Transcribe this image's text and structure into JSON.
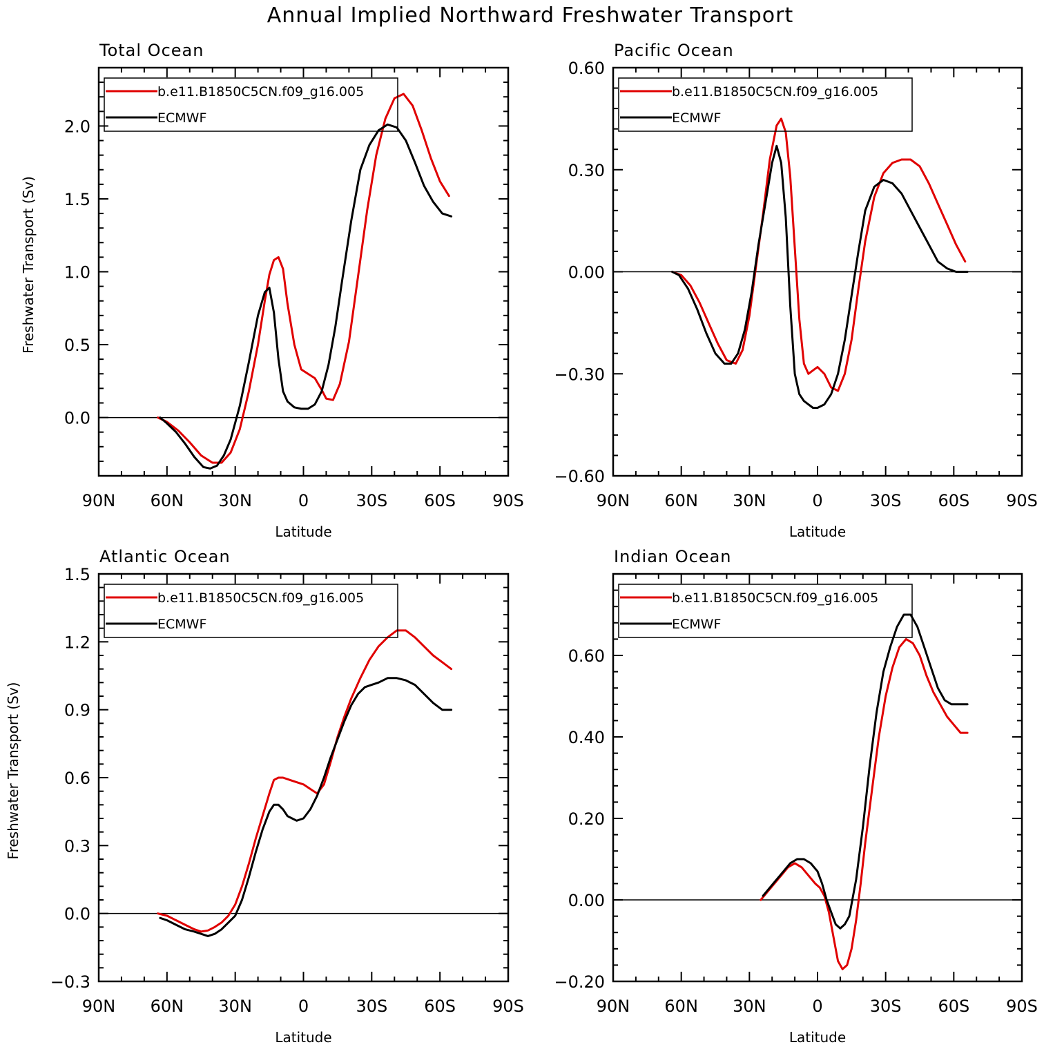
{
  "figure_title": "Annual Implied Northward Freshwater Transport",
  "legend_labels": [
    "b.e11.B1850C5CN.f09_g16.005",
    "ECMWF"
  ],
  "colors": {
    "model": "#e00000",
    "ecmwf": "#000000",
    "axis": "#000000"
  },
  "chart_data": [
    {
      "type": "line",
      "title": "Total Ocean",
      "xlabel": "Latitude",
      "ylabel": "Freshwater Transport (Sv)",
      "xlim": [
        90,
        -90
      ],
      "ylim": [
        -0.4,
        2.4
      ],
      "xticks": [
        90,
        60,
        30,
        0,
        -30,
        -60,
        -90
      ],
      "xtick_labels": [
        "90N",
        "60N",
        "30N",
        "0",
        "30S",
        "60S",
        "90S"
      ],
      "yticks": [
        0.0,
        0.5,
        1.0,
        1.5,
        2.0
      ],
      "ytick_labels": [
        "0.0",
        "0.5",
        "1.0",
        "1.5",
        "2.0"
      ],
      "right_axis_labels": false,
      "legend": "top-left",
      "series": [
        {
          "name": "b.e11.B1850C5CN.f09_g16.005",
          "color": "#e00000",
          "x": [
            64,
            60,
            55,
            50,
            45,
            40,
            36,
            32,
            28,
            24,
            20,
            17,
            15,
            13,
            11,
            9,
            7,
            4,
            1,
            -2,
            -5,
            -8,
            -10,
            -13,
            -16,
            -20,
            -24,
            -28,
            -32,
            -36,
            -40,
            -44,
            -48,
            -52,
            -56,
            -60,
            -64
          ],
          "y": [
            0.0,
            -0.03,
            -0.09,
            -0.17,
            -0.26,
            -0.31,
            -0.31,
            -0.24,
            -0.08,
            0.18,
            0.5,
            0.8,
            0.98,
            1.08,
            1.1,
            1.02,
            0.78,
            0.5,
            0.33,
            0.3,
            0.27,
            0.19,
            0.13,
            0.12,
            0.23,
            0.52,
            0.97,
            1.42,
            1.8,
            2.05,
            2.19,
            2.22,
            2.14,
            1.97,
            1.78,
            1.62,
            1.52
          ]
        },
        {
          "name": "ECMWF",
          "color": "#000000",
          "x": [
            63,
            60,
            56,
            52,
            48,
            44,
            41,
            38,
            35,
            32,
            28,
            24,
            20,
            17,
            15,
            13,
            11,
            9,
            7,
            4,
            1,
            -2,
            -5,
            -8,
            -11,
            -14,
            -17,
            -21,
            -25,
            -29,
            -33,
            -37,
            -41,
            -45,
            -49,
            -53,
            -57,
            -61,
            -65
          ],
          "y": [
            0.0,
            -0.04,
            -0.1,
            -0.18,
            -0.27,
            -0.34,
            -0.35,
            -0.33,
            -0.26,
            -0.15,
            0.08,
            0.38,
            0.7,
            0.86,
            0.89,
            0.72,
            0.4,
            0.18,
            0.11,
            0.07,
            0.06,
            0.06,
            0.09,
            0.18,
            0.36,
            0.62,
            0.94,
            1.35,
            1.7,
            1.87,
            1.97,
            2.01,
            1.99,
            1.9,
            1.75,
            1.59,
            1.48,
            1.4,
            1.38
          ]
        }
      ]
    },
    {
      "type": "line",
      "title": "Pacific Ocean",
      "xlabel": "Latitude",
      "ylabel": "",
      "xlim": [
        90,
        -90
      ],
      "ylim": [
        -0.6,
        0.6
      ],
      "xticks": [
        90,
        60,
        30,
        0,
        -30,
        -60,
        -90
      ],
      "xtick_labels": [
        "90N",
        "60N",
        "30N",
        "0",
        "30S",
        "60S",
        "90S"
      ],
      "yticks": [
        -0.6,
        -0.3,
        0.0,
        0.3,
        0.6
      ],
      "ytick_labels": [
        "−0.60",
        "−0.30",
        "0.00",
        "0.30",
        "0.60"
      ],
      "right_axis_labels": false,
      "legend": "top-left",
      "series": [
        {
          "name": "b.e11.B1850C5CN.f09_g16.005",
          "color": "#e00000",
          "x": [
            64,
            60,
            56,
            52,
            48,
            44,
            40,
            36,
            33,
            30,
            27,
            24,
            21,
            18,
            16,
            14,
            12,
            10,
            8,
            6,
            4,
            2,
            0,
            -3,
            -6,
            -9,
            -12,
            -15,
            -18,
            -21,
            -25,
            -29,
            -33,
            -37,
            -41,
            -45,
            -49,
            -53,
            -57,
            -61,
            -65
          ],
          "y": [
            0.0,
            -0.01,
            -0.04,
            -0.09,
            -0.15,
            -0.21,
            -0.26,
            -0.27,
            -0.23,
            -0.13,
            0.02,
            0.17,
            0.33,
            0.43,
            0.45,
            0.41,
            0.28,
            0.07,
            -0.14,
            -0.27,
            -0.3,
            -0.29,
            -0.28,
            -0.3,
            -0.34,
            -0.35,
            -0.3,
            -0.2,
            -0.05,
            0.09,
            0.22,
            0.29,
            0.32,
            0.33,
            0.33,
            0.31,
            0.26,
            0.2,
            0.14,
            0.08,
            0.03
          ]
        },
        {
          "name": "ECMWF",
          "color": "#000000",
          "x": [
            64,
            61,
            57,
            53,
            49,
            45,
            41,
            38,
            35,
            32,
            29,
            26,
            23,
            20,
            18,
            16,
            14,
            12,
            10,
            8,
            6,
            4,
            2,
            0,
            -3,
            -6,
            -9,
            -12,
            -15,
            -18,
            -21,
            -25,
            -29,
            -33,
            -37,
            -41,
            -45,
            -49,
            -53,
            -57,
            -61,
            -66
          ],
          "y": [
            0.0,
            -0.01,
            -0.05,
            -0.11,
            -0.18,
            -0.24,
            -0.27,
            -0.27,
            -0.24,
            -0.17,
            -0.06,
            0.08,
            0.2,
            0.32,
            0.37,
            0.32,
            0.16,
            -0.1,
            -0.3,
            -0.36,
            -0.38,
            -0.39,
            -0.4,
            -0.4,
            -0.39,
            -0.36,
            -0.3,
            -0.2,
            -0.07,
            0.06,
            0.18,
            0.25,
            0.27,
            0.26,
            0.23,
            0.18,
            0.13,
            0.08,
            0.03,
            0.01,
            0.0,
            0.0
          ]
        }
      ]
    },
    {
      "type": "line",
      "title": "Atlantic Ocean",
      "xlabel": "Latitude",
      "ylabel": "Freshwater Transport (Sv)",
      "xlim": [
        90,
        -90
      ],
      "ylim": [
        -0.3,
        1.5
      ],
      "xticks": [
        90,
        60,
        30,
        0,
        -30,
        -60,
        -90
      ],
      "xtick_labels": [
        "90N",
        "60N",
        "30N",
        "0",
        "30S",
        "60S",
        "90S"
      ],
      "yticks": [
        -0.3,
        0.0,
        0.3,
        0.6,
        0.9,
        1.2,
        1.5
      ],
      "ytick_labels": [
        "−0.3",
        "0.0",
        "0.3",
        "0.6",
        "0.9",
        "1.2",
        "1.5"
      ],
      "right_axis_labels": false,
      "legend": "top-left",
      "series": [
        {
          "name": "b.e11.B1850C5CN.f09_g16.005",
          "color": "#e00000",
          "x": [
            64,
            60,
            56,
            52,
            48,
            45,
            42,
            39,
            36,
            33,
            30,
            27,
            24,
            21,
            18,
            15,
            13,
            11,
            9,
            6,
            3,
            0,
            -3,
            -6,
            -9,
            -12,
            -15,
            -18,
            -21,
            -25,
            -29,
            -33,
            -37,
            -41,
            -45,
            -49,
            -53,
            -57,
            -61,
            -65
          ],
          "y": [
            0.0,
            -0.01,
            -0.03,
            -0.05,
            -0.07,
            -0.08,
            -0.075,
            -0.06,
            -0.04,
            -0.01,
            0.04,
            0.12,
            0.22,
            0.33,
            0.43,
            0.53,
            0.59,
            0.6,
            0.6,
            0.59,
            0.58,
            0.57,
            0.55,
            0.53,
            0.57,
            0.67,
            0.78,
            0.87,
            0.95,
            1.04,
            1.12,
            1.18,
            1.22,
            1.25,
            1.25,
            1.22,
            1.18,
            1.14,
            1.11,
            1.08
          ]
        },
        {
          "name": "ECMWF",
          "color": "#000000",
          "x": [
            63,
            60,
            56,
            52,
            48,
            45,
            42,
            39,
            36,
            33,
            30,
            27,
            24,
            21,
            18,
            15,
            13,
            11,
            9,
            7,
            5,
            3,
            0,
            -3,
            -6,
            -9,
            -12,
            -15,
            -18,
            -21,
            -24,
            -27,
            -30,
            -33,
            -37,
            -41,
            -45,
            -49,
            -53,
            -57,
            -61,
            -65
          ],
          "y": [
            -0.02,
            -0.03,
            -0.05,
            -0.07,
            -0.08,
            -0.09,
            -0.1,
            -0.09,
            -0.07,
            -0.04,
            -0.01,
            0.06,
            0.16,
            0.27,
            0.37,
            0.45,
            0.48,
            0.48,
            0.46,
            0.43,
            0.42,
            0.41,
            0.42,
            0.46,
            0.52,
            0.6,
            0.69,
            0.77,
            0.85,
            0.92,
            0.97,
            1.0,
            1.01,
            1.02,
            1.04,
            1.04,
            1.03,
            1.01,
            0.97,
            0.93,
            0.9,
            0.9
          ]
        }
      ]
    },
    {
      "type": "line",
      "title": "Indian Ocean",
      "xlabel": "Latitude",
      "ylabel": "",
      "xlim": [
        90,
        -90
      ],
      "ylim": [
        -0.2,
        0.8
      ],
      "xticks": [
        90,
        60,
        30,
        0,
        -30,
        -60,
        -90
      ],
      "xtick_labels": [
        "90N",
        "60N",
        "30N",
        "0",
        "30S",
        "60S",
        "90S"
      ],
      "yticks": [
        -0.2,
        0.0,
        0.2,
        0.4,
        0.6
      ],
      "ytick_labels": [
        "−0.20",
        "0.00",
        "0.20",
        "0.40",
        "0.60"
      ],
      "right_axis_labels": false,
      "legend": "top-left",
      "series": [
        {
          "name": "b.e11.B1850C5CN.f09_g16.005",
          "color": "#e00000",
          "x": [
            25,
            22,
            19,
            16,
            13,
            10,
            7,
            4,
            1,
            -1,
            -3,
            -5,
            -7,
            -9,
            -11,
            -13,
            -15,
            -17,
            -19,
            -21,
            -24,
            -27,
            -30,
            -33,
            -36,
            -39,
            -42,
            -45,
            -48,
            -51,
            -54,
            -57,
            -60,
            -63,
            -66
          ],
          "y": [
            0.0,
            0.02,
            0.04,
            0.06,
            0.08,
            0.09,
            0.08,
            0.06,
            0.04,
            0.03,
            0.01,
            -0.03,
            -0.09,
            -0.15,
            -0.17,
            -0.16,
            -0.12,
            -0.05,
            0.04,
            0.14,
            0.27,
            0.4,
            0.5,
            0.57,
            0.62,
            0.64,
            0.63,
            0.6,
            0.55,
            0.51,
            0.48,
            0.45,
            0.43,
            0.41,
            0.41
          ]
        },
        {
          "name": "ECMWF",
          "color": "#000000",
          "x": [
            24,
            21,
            18,
            15,
            12,
            9,
            6,
            3,
            0,
            -2,
            -4,
            -6,
            -8,
            -10,
            -12,
            -14,
            -17,
            -20,
            -23,
            -26,
            -29,
            -32,
            -35,
            -38,
            -41,
            -44,
            -47,
            -50,
            -53,
            -56,
            -59,
            -62,
            -66
          ],
          "y": [
            0.01,
            0.03,
            0.05,
            0.07,
            0.09,
            0.1,
            0.1,
            0.09,
            0.07,
            0.04,
            0.0,
            -0.03,
            -0.06,
            -0.07,
            -0.06,
            -0.04,
            0.05,
            0.18,
            0.33,
            0.46,
            0.56,
            0.62,
            0.67,
            0.7,
            0.7,
            0.67,
            0.62,
            0.57,
            0.52,
            0.49,
            0.48,
            0.48,
            0.48
          ]
        }
      ]
    }
  ]
}
